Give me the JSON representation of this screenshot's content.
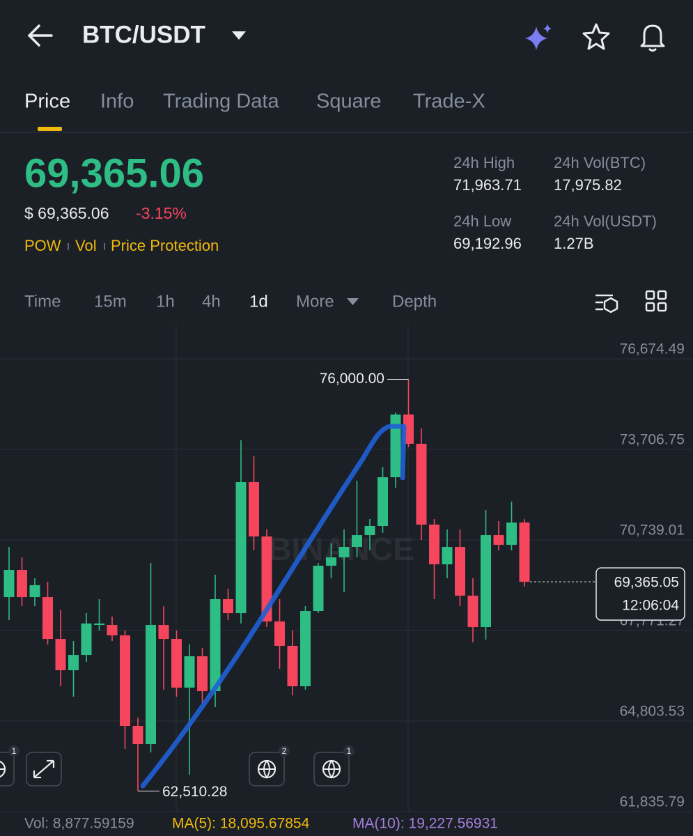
{
  "header": {
    "title": "BTC/USDT"
  },
  "tabs": [
    "Price",
    "Info",
    "Trading Data",
    "Square",
    "Trade-X"
  ],
  "price": {
    "last": "69,365.06",
    "fiat": "$ 69,365.06",
    "change": "-3.15%",
    "tags": [
      "POW",
      "Vol",
      "Price Protection"
    ]
  },
  "stats": [
    {
      "label": "24h High",
      "value": "71,963.71"
    },
    {
      "label": "24h Vol(BTC)",
      "value": "17,975.82"
    },
    {
      "label": "24h Low",
      "value": "69,192.96"
    },
    {
      "label": "24h Vol(USDT)",
      "value": "1.27B"
    }
  ],
  "intervals": [
    "Time",
    "15m",
    "1h",
    "4h",
    "1d",
    "More",
    "Depth"
  ],
  "chart_data": {
    "type": "candlestick",
    "open": [
      68866,
      69757,
      68866,
      68866,
      67496,
      66469,
      66971,
      67953,
      67953,
      67611,
      64643,
      64049,
      67953,
      67496,
      65898,
      66926,
      65784,
      68798,
      68341,
      72633,
      70852,
      68067,
      67268,
      65944,
      68410,
      69893,
      70167,
      70510,
      70898,
      71195,
      72793,
      74848,
      73889,
      71240,
      69939,
      70510,
      68912,
      67884,
      70898,
      70578,
      71309
    ],
    "high": [
      70510,
      70167,
      69483,
      69368,
      68455,
      67428,
      68341,
      68798,
      68227,
      67770,
      64917,
      69985,
      68569,
      67770,
      67314,
      67200,
      69597,
      69140,
      74003,
      73478,
      71081,
      68798,
      67770,
      68569,
      69985,
      70624,
      71081,
      72679,
      71423,
      73135,
      74916,
      76000,
      74391,
      71423,
      71081,
      71081,
      69483,
      71720,
      71355,
      71994,
      71423
    ],
    "low": [
      68113,
      68569,
      68569,
      67314,
      65944,
      65601,
      66743,
      67770,
      67428,
      63889,
      62510.28,
      63775,
      65830,
      65601,
      63044,
      65373,
      65259,
      68113,
      67999,
      70396,
      67884,
      66515,
      65647,
      65830,
      68341,
      69483,
      69026,
      70167,
      70396,
      70966,
      72450,
      73775,
      70738,
      68798,
      69483,
      68569,
      67382,
      67474,
      70396,
      70396,
      69209
    ],
    "close": [
      69757,
      68866,
      69254,
      67496,
      66469,
      66971,
      67999,
      67999,
      67611,
      64643,
      64049,
      67953,
      67496,
      65898,
      66926,
      65784,
      68798,
      68341,
      72633,
      70852,
      68067,
      67268,
      65944,
      68410,
      69893,
      70167,
      70510,
      70898,
      71195,
      72793,
      74848,
      73889,
      71240,
      69939,
      70510,
      68912,
      67884,
      70898,
      70578,
      71309,
      69365.05
    ],
    "ylim": [
      61835.79,
      77770
    ],
    "yticks": [
      {
        "value": 61835.79,
        "label": "61,835.79"
      },
      {
        "value": 64803.53,
        "label": "64,803.53"
      },
      {
        "value": 67771.27,
        "label": "67,771.27"
      },
      {
        "value": 70739.01,
        "label": "70,739.01"
      },
      {
        "value": 73706.75,
        "label": "73,706.75"
      },
      {
        "value": 76674.49,
        "label": "76,674.49"
      }
    ],
    "high_label": "76,000.00",
    "low_label": "62,510.28",
    "last_price_label": "69,365.05",
    "countdown": "12:06:04",
    "watermark": "BINANCE",
    "colors": {
      "up": "#2ebd85",
      "down": "#f6465d"
    },
    "indicator_badges": [
      "1",
      "2",
      "1"
    ]
  },
  "footer": {
    "vol": "Vol: 8,877.59159",
    "ma5": "MA(5): 18,095.67854",
    "ma10": "MA(10): 19,227.56931"
  }
}
